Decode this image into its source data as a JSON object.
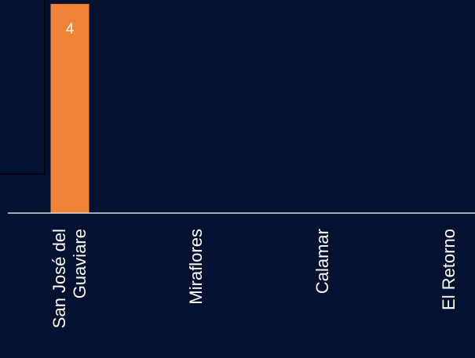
{
  "chart_data": {
    "type": "bar",
    "categories": [
      [
        "San José del",
        "Guaviare"
      ],
      [
        "Miraflores"
      ],
      [
        "Calamar"
      ],
      [
        "El Retorno"
      ]
    ],
    "values": [
      4,
      0,
      0,
      0
    ],
    "data_labels": [
      "4",
      "",
      "",
      ""
    ],
    "title": "",
    "xlabel": "",
    "ylabel": "",
    "ylim": [
      0,
      4
    ],
    "grid": false,
    "legend": "none"
  },
  "colors": {
    "background": "#041130",
    "bar": "#F08336",
    "axis": "#D9D9D9",
    "text": "#FFFFFF",
    "panel_edge": "#000000"
  }
}
